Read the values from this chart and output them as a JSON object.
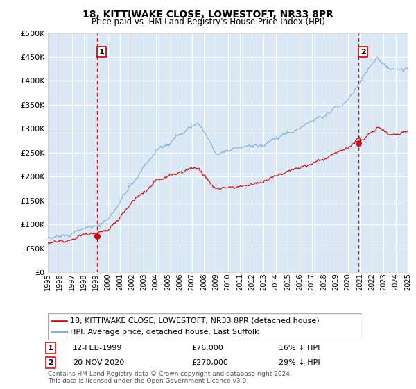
{
  "title": "18, KITTIWAKE CLOSE, LOWESTOFT, NR33 8PR",
  "subtitle": "Price paid vs. HM Land Registry's House Price Index (HPI)",
  "bg_color": "#dce8f5",
  "grid_color": "#ffffff",
  "hpi_color": "#7bafd4",
  "price_color": "#cc1111",
  "dashed_color": "#cc1111",
  "ylim": [
    0,
    500000
  ],
  "yticks": [
    0,
    50000,
    100000,
    150000,
    200000,
    250000,
    300000,
    350000,
    400000,
    450000,
    500000
  ],
  "sale1_date": 1999.12,
  "sale1_price": 76000,
  "sale1_label": "1",
  "sale2_date": 2020.9,
  "sale2_price": 270000,
  "sale2_label": "2",
  "xmin": 1995,
  "xmax": 2025,
  "footnote": "Contains HM Land Registry data © Crown copyright and database right 2024.\nThis data is licensed under the Open Government Licence v3.0.",
  "legend1": "18, KITTIWAKE CLOSE, LOWESTOFT, NR33 8PR (detached house)",
  "legend2": "HPI: Average price, detached house, East Suffolk",
  "table_row1": [
    "1",
    "12-FEB-1999",
    "£76,000",
    "16% ↓ HPI"
  ],
  "table_row2": [
    "2",
    "20-NOV-2020",
    "£270,000",
    "29% ↓ HPI"
  ]
}
